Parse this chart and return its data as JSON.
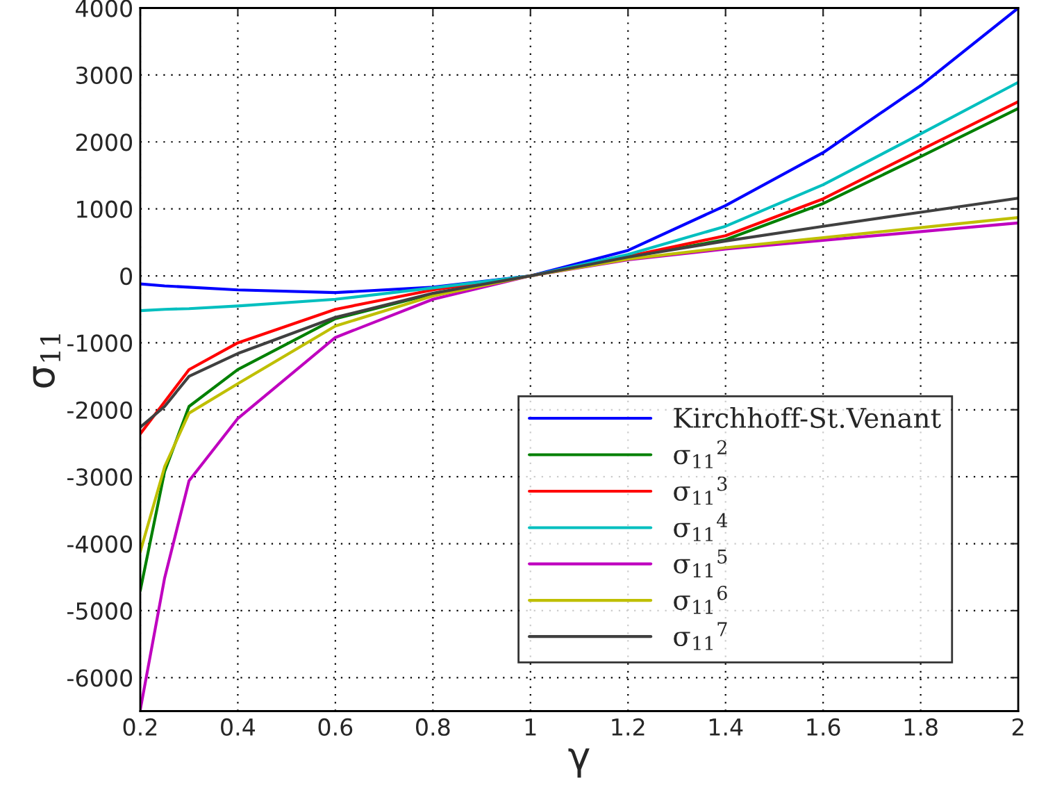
{
  "chart_data": {
    "type": "line",
    "xlabel": "γ",
    "ylabel": "σ$_{11}$",
    "x": [
      0.2,
      0.25,
      0.3,
      0.4,
      0.6,
      0.8,
      1.0,
      1.2,
      1.4,
      1.6,
      1.8,
      2.0
    ],
    "series": [
      {
        "name": "Kirchhoff-St.Venant",
        "color": "#0000ff",
        "values": [
          -120,
          -150,
          -170,
          -210,
          -250,
          -170,
          0,
          380,
          1050,
          1840,
          2840,
          4000
        ]
      },
      {
        "name": "σ$_{11}$$^{2}$",
        "color": "#008000",
        "values": [
          -4700,
          -2920,
          -1950,
          -1400,
          -640,
          -270,
          0,
          280,
          540,
          1080,
          1780,
          2500
        ]
      },
      {
        "name": "σ$_{11}$$^{3}$",
        "color": "#ff0000",
        "values": [
          -2360,
          -1880,
          -1400,
          -1000,
          -500,
          -210,
          0,
          290,
          600,
          1150,
          1880,
          2600
        ]
      },
      {
        "name": "σ$_{11}$$^{4}$",
        "color": "#00bfbf",
        "values": [
          -520,
          -500,
          -490,
          -450,
          -350,
          -180,
          0,
          320,
          740,
          1360,
          2120,
          2890
        ]
      },
      {
        "name": "σ$_{11}$$^{5}$",
        "color": "#bf00bf",
        "values": [
          -6480,
          -4510,
          -3060,
          -2130,
          -920,
          -350,
          0,
          240,
          400,
          530,
          660,
          790
        ]
      },
      {
        "name": "σ$_{11}$$^{6}$",
        "color": "#bfbf00",
        "values": [
          -4120,
          -2850,
          -2050,
          -1610,
          -750,
          -300,
          0,
          250,
          420,
          570,
          720,
          870
        ]
      },
      {
        "name": "σ$_{11}$$^{7}$",
        "color": "#404040",
        "values": [
          -2260,
          -1950,
          -1500,
          -1160,
          -620,
          -260,
          0,
          280,
          520,
          740,
          950,
          1160
        ]
      }
    ],
    "xlim": [
      0.2,
      2
    ],
    "xticks": [
      0.2,
      0.4,
      0.6,
      0.8,
      1,
      1.2,
      1.4,
      1.6,
      1.8,
      2
    ],
    "ylim": [
      -6500,
      4000
    ],
    "yticks": [
      -6000,
      -5000,
      -4000,
      -3000,
      -2000,
      -1000,
      0,
      1000,
      2000,
      3000,
      4000
    ],
    "grid": true,
    "legend": "bottom right",
    "line_style": "solid",
    "marker": "none"
  }
}
